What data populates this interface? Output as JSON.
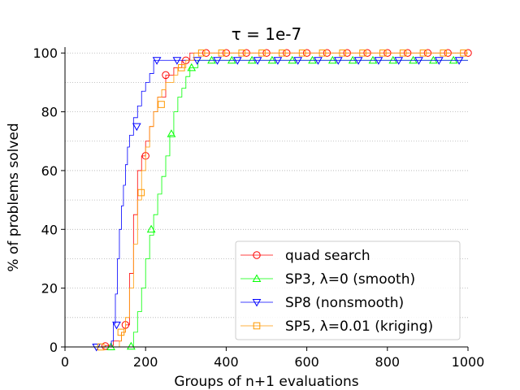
{
  "chart_data": {
    "type": "line",
    "title": "τ = 1e-7",
    "xlabel": "Groups of n+1 evaluations",
    "ylabel": "% of problems solved",
    "xlim": [
      0,
      1000
    ],
    "ylim": [
      0,
      102
    ],
    "xticks": [
      0,
      200,
      400,
      600,
      800,
      1000
    ],
    "yticks": [
      0,
      20,
      40,
      60,
      80,
      100
    ],
    "grid": "horizontal dotted, every 10%",
    "legend_position": "lower-right",
    "series": [
      {
        "name": "quad search",
        "color": "#ff0000",
        "marker": "circle",
        "points": [
          [
            0,
            0
          ],
          [
            90,
            0
          ],
          [
            100,
            0.5
          ],
          [
            120,
            2
          ],
          [
            140,
            5
          ],
          [
            150,
            7.5
          ],
          [
            160,
            25
          ],
          [
            170,
            45
          ],
          [
            180,
            60
          ],
          [
            190,
            65
          ],
          [
            200,
            70
          ],
          [
            210,
            75
          ],
          [
            220,
            80
          ],
          [
            230,
            85
          ],
          [
            250,
            92.5
          ],
          [
            270,
            95
          ],
          [
            290,
            97.5
          ],
          [
            310,
            100
          ],
          [
            1000,
            100
          ]
        ],
        "markers_x": [
          100,
          150,
          200,
          250,
          300,
          350,
          400,
          450,
          500,
          550,
          600,
          650,
          700,
          750,
          800,
          850,
          900,
          950,
          1000
        ],
        "markers_y": [
          0.3,
          7.5,
          65,
          92.5,
          97.5,
          100,
          100,
          100,
          100,
          100,
          100,
          100,
          100,
          100,
          100,
          100,
          100,
          100,
          100
        ]
      },
      {
        "name": "SP3, λ=0 (smooth)",
        "color": "#00ff00",
        "marker": "triangle-up",
        "points": [
          [
            0,
            0
          ],
          [
            160,
            0
          ],
          [
            170,
            5
          ],
          [
            180,
            12
          ],
          [
            190,
            20
          ],
          [
            200,
            30
          ],
          [
            210,
            38
          ],
          [
            220,
            45
          ],
          [
            230,
            52
          ],
          [
            240,
            58
          ],
          [
            250,
            65
          ],
          [
            260,
            72
          ],
          [
            270,
            80
          ],
          [
            280,
            85
          ],
          [
            290,
            88
          ],
          [
            300,
            92
          ],
          [
            310,
            95
          ],
          [
            330,
            97.5
          ],
          [
            1000,
            97.5
          ]
        ],
        "markers_x": [
          114,
          164,
          214,
          264,
          314,
          364,
          414,
          464,
          514,
          564,
          614,
          664,
          714,
          764,
          814,
          864,
          914,
          964
        ],
        "markers_y": [
          0,
          0.2,
          40,
          72.5,
          95,
          97.5,
          97.5,
          97.5,
          97.5,
          97.5,
          97.5,
          97.5,
          97.5,
          97.5,
          97.5,
          97.5,
          97.5,
          97.5
        ]
      },
      {
        "name": "SP8 (nonsmooth)",
        "color": "#0000ff",
        "marker": "triangle-down",
        "points": [
          [
            0,
            0
          ],
          [
            110,
            0
          ],
          [
            115,
            2
          ],
          [
            120,
            8
          ],
          [
            125,
            18
          ],
          [
            130,
            30
          ],
          [
            135,
            40
          ],
          [
            140,
            48
          ],
          [
            145,
            55
          ],
          [
            150,
            62
          ],
          [
            155,
            68
          ],
          [
            160,
            72
          ],
          [
            170,
            78
          ],
          [
            180,
            82
          ],
          [
            190,
            87
          ],
          [
            200,
            90
          ],
          [
            210,
            93
          ],
          [
            220,
            97.5
          ],
          [
            1000,
            97.5
          ]
        ],
        "markers_x": [
          78,
          128,
          178,
          228,
          278,
          328,
          378,
          428,
          478,
          528,
          578,
          628,
          678,
          728,
          778,
          828,
          878,
          928,
          978
        ],
        "markers_y": [
          0,
          7.5,
          75,
          97.5,
          97.5,
          97.5,
          97.5,
          97.5,
          97.5,
          97.5,
          97.5,
          97.5,
          97.5,
          97.5,
          97.5,
          97.5,
          97.5,
          97.5,
          97.5
        ]
      },
      {
        "name": "SP5, λ=0.01 (kriging)",
        "color": "#ff9900",
        "marker": "square",
        "points": [
          [
            0,
            0
          ],
          [
            130,
            0
          ],
          [
            135,
            2
          ],
          [
            140,
            5
          ],
          [
            150,
            10
          ],
          [
            160,
            20
          ],
          [
            170,
            35
          ],
          [
            180,
            50
          ],
          [
            190,
            60
          ],
          [
            200,
            68
          ],
          [
            210,
            75
          ],
          [
            220,
            80
          ],
          [
            230,
            85
          ],
          [
            240,
            87.5
          ],
          [
            250,
            90
          ],
          [
            270,
            92.5
          ],
          [
            280,
            95
          ],
          [
            300,
            97.5
          ],
          [
            320,
            100
          ],
          [
            1000,
            100
          ]
        ],
        "markers_x": [
          89,
          139,
          189,
          239,
          289,
          339,
          389,
          439,
          489,
          539,
          589,
          639,
          689,
          739,
          789,
          839,
          889,
          939,
          989
        ],
        "markers_y": [
          0,
          5,
          52.5,
          82.5,
          95,
          100,
          100,
          100,
          100,
          100,
          100,
          100,
          100,
          100,
          100,
          100,
          100,
          100,
          100
        ]
      }
    ]
  }
}
